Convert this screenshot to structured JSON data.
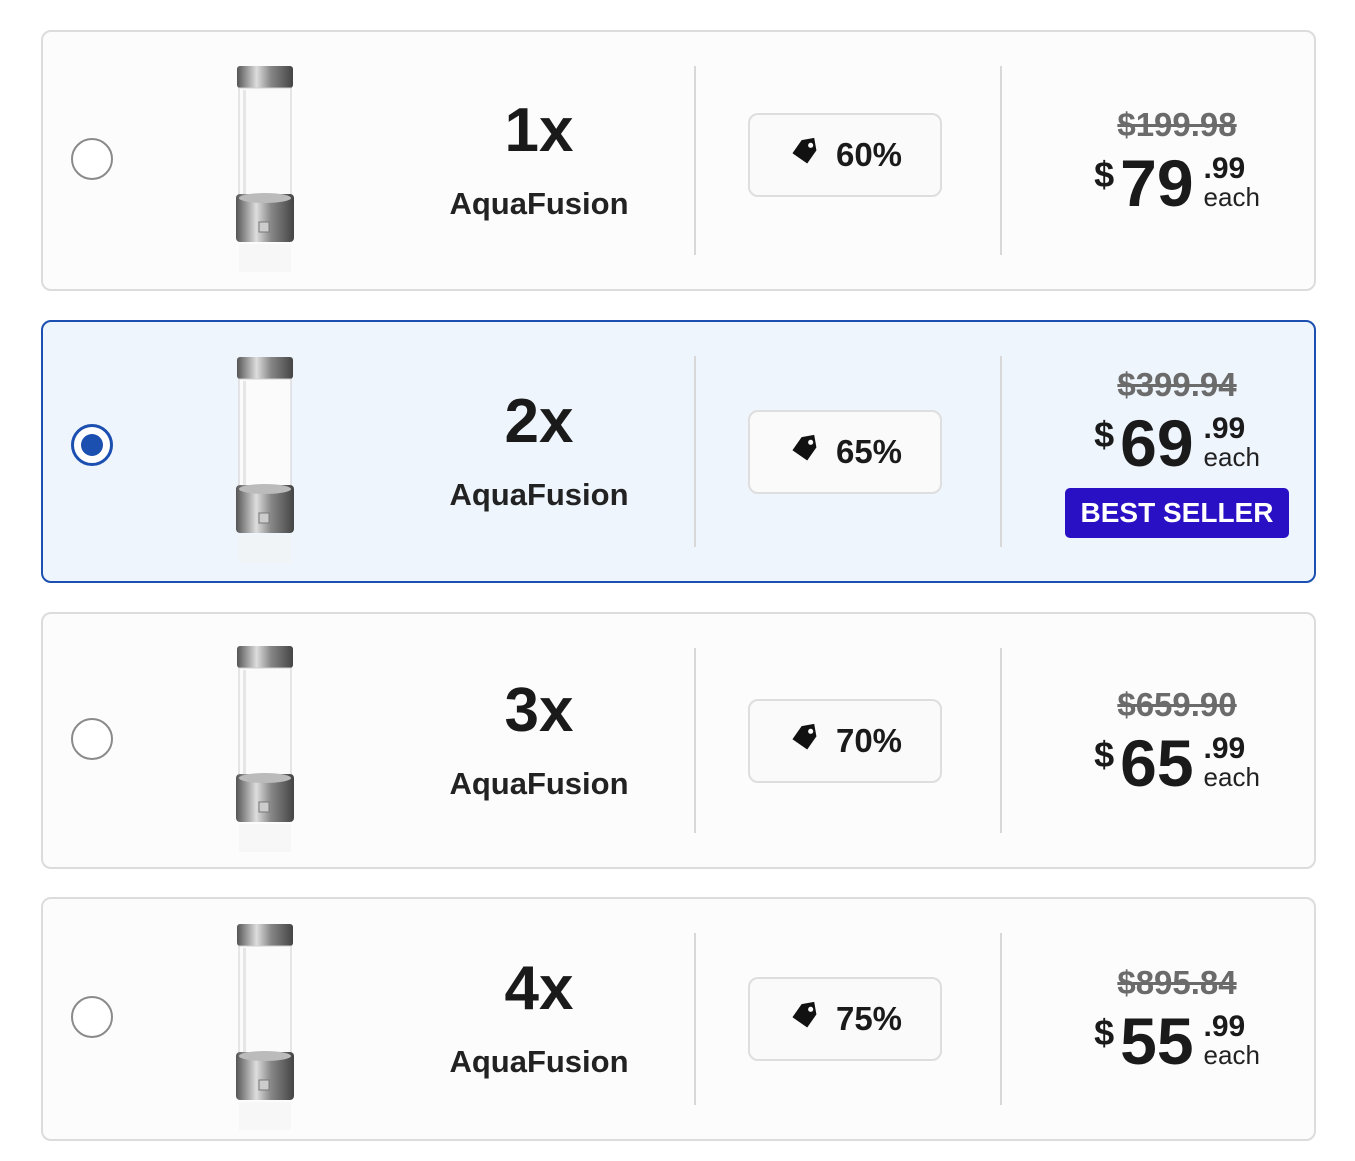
{
  "options": [
    {
      "quantity": "1x",
      "product": "AquaFusion",
      "discount": "60%",
      "old_price": "$199.98",
      "currency": "$",
      "price_whole": "79",
      "price_cents": ".99",
      "unit": "each",
      "selected": false
    },
    {
      "quantity": "2x",
      "product": "AquaFusion",
      "discount": "65%",
      "old_price": "$399.94",
      "currency": "$",
      "price_whole": "69",
      "price_cents": ".99",
      "unit": "each",
      "badge": "BEST SELLER",
      "selected": true
    },
    {
      "quantity": "3x",
      "product": "AquaFusion",
      "discount": "70%",
      "old_price": "$659.90",
      "currency": "$",
      "price_whole": "65",
      "price_cents": ".99",
      "unit": "each",
      "selected": false
    },
    {
      "quantity": "4x",
      "product": "AquaFusion",
      "discount": "75%",
      "old_price": "$895.84",
      "currency": "$",
      "price_whole": "55",
      "price_cents": ".99",
      "unit": "each",
      "selected": false
    }
  ]
}
